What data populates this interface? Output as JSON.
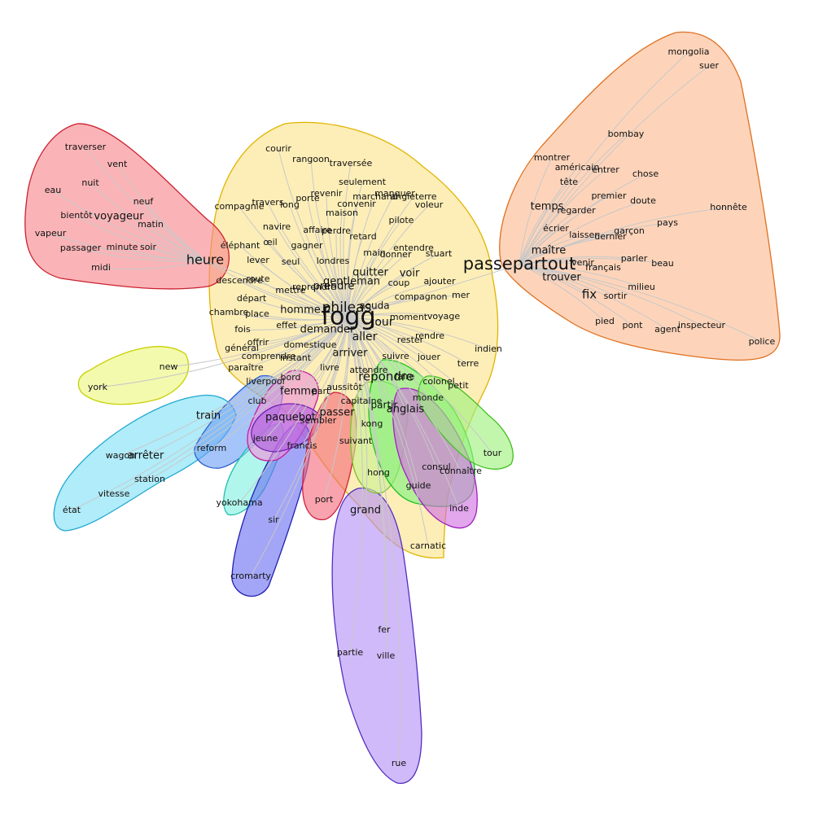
{
  "clusters": [
    {
      "id": "fogg",
      "fill": "#fce38a",
      "stroke": "#e0b400"
    },
    {
      "id": "heure",
      "fill": "#f7868b",
      "stroke": "#cc2030"
    },
    {
      "id": "passepartout",
      "fill": "#fbb990",
      "stroke": "#e07020"
    },
    {
      "id": "york",
      "fill": "#ecf77a",
      "stroke": "#c8d000"
    },
    {
      "id": "train",
      "fill": "#7fe0f5",
      "stroke": "#20a8d0"
    },
    {
      "id": "liverpool",
      "fill": "#6ea0f5",
      "stroke": "#3060d0"
    },
    {
      "id": "yokohama",
      "fill": "#7ff0e0",
      "stroke": "#20c0b0"
    },
    {
      "id": "sir",
      "fill": "#6a70f0",
      "stroke": "#2020b0"
    },
    {
      "id": "femme",
      "fill": "#f090d8",
      "stroke": "#c020a0"
    },
    {
      "id": "paquebot",
      "fill": "#b060e0",
      "stroke": "#7020b0"
    },
    {
      "id": "passer",
      "fill": "#f36a7a",
      "stroke": "#d02040"
    },
    {
      "id": "grand",
      "fill": "#b490f5",
      "stroke": "#5030c0"
    },
    {
      "id": "kong",
      "fill": "#c8f090",
      "stroke": "#80c030"
    },
    {
      "id": "repondre",
      "fill": "#7ff080",
      "stroke": "#20c020"
    },
    {
      "id": "anglais",
      "fill": "#d070e0",
      "stroke": "#a020c0"
    },
    {
      "id": "monde",
      "fill": "#9cf07a",
      "stroke": "#40c020"
    }
  ],
  "words": [
    {
      "text": "fogg",
      "size": 30
    },
    {
      "text": "phileas",
      "size": 17
    },
    {
      "text": "passepartout",
      "size": 21
    },
    {
      "text": "heure",
      "size": 16
    },
    {
      "text": "répondre",
      "size": 15
    },
    {
      "text": "fix",
      "size": 15
    },
    {
      "text": "aller",
      "size": 14
    },
    {
      "text": "gentleman",
      "size": 13
    },
    {
      "text": "jour",
      "size": 14
    },
    {
      "text": "homme",
      "size": 13
    },
    {
      "text": "demander",
      "size": 13
    },
    {
      "text": "arriver",
      "size": 13
    },
    {
      "text": "quitter",
      "size": 13
    },
    {
      "text": "voir",
      "size": 13
    },
    {
      "text": "prendre",
      "size": 13
    },
    {
      "text": "aouda",
      "size": 12
    },
    {
      "text": "maître",
      "size": 13
    },
    {
      "text": "trouver",
      "size": 13
    },
    {
      "text": "temps",
      "size": 13
    },
    {
      "text": "voyageur",
      "size": 13
    },
    {
      "text": "train",
      "size": 13
    },
    {
      "text": "arrêter",
      "size": 13
    },
    {
      "text": "passer",
      "size": 13
    },
    {
      "text": "paquebot",
      "size": 13
    },
    {
      "text": "femme",
      "size": 13
    },
    {
      "text": "anglais",
      "size": 13
    },
    {
      "text": "grand",
      "size": 13
    },
    {
      "text": "partir",
      "size": 12
    },
    {
      "text": "courir",
      "size": 11
    },
    {
      "text": "rangoon",
      "size": 11
    },
    {
      "text": "traversée",
      "size": 11
    },
    {
      "text": "seulement",
      "size": 11
    },
    {
      "text": "manquer",
      "size": 11
    },
    {
      "text": "revenir",
      "size": 11
    },
    {
      "text": "compagnie",
      "size": 11
    },
    {
      "text": "travers",
      "size": 11
    },
    {
      "text": "porte",
      "size": 11
    },
    {
      "text": "convenir",
      "size": 11
    },
    {
      "text": "marchand",
      "size": 11
    },
    {
      "text": "angleterre",
      "size": 11
    },
    {
      "text": "voleur",
      "size": 11
    },
    {
      "text": "long",
      "size": 11
    },
    {
      "text": "maison",
      "size": 11
    },
    {
      "text": "navire",
      "size": 11
    },
    {
      "text": "pilote",
      "size": 11
    },
    {
      "text": "affaire",
      "size": 11
    },
    {
      "text": "perdre",
      "size": 11
    },
    {
      "text": "œil",
      "size": 11
    },
    {
      "text": "éléphant",
      "size": 11
    },
    {
      "text": "gagner",
      "size": 11
    },
    {
      "text": "retard",
      "size": 11
    },
    {
      "text": "entendre",
      "size": 11
    },
    {
      "text": "lever",
      "size": 11
    },
    {
      "text": "seul",
      "size": 11
    },
    {
      "text": "londres",
      "size": 11
    },
    {
      "text": "main",
      "size": 11
    },
    {
      "text": "donner",
      "size": 11
    },
    {
      "text": "stuart",
      "size": 11
    },
    {
      "text": "descendre",
      "size": 11
    },
    {
      "text": "route",
      "size": 11
    },
    {
      "text": "coup",
      "size": 11
    },
    {
      "text": "ajouter",
      "size": 11
    },
    {
      "text": "mettre",
      "size": 11
    },
    {
      "text": "reprendre",
      "size": 11
    },
    {
      "text": "compagnon",
      "size": 11
    },
    {
      "text": "mer",
      "size": 11
    },
    {
      "text": "chambre",
      "size": 11
    },
    {
      "text": "place",
      "size": 11
    },
    {
      "text": "départ",
      "size": 11
    },
    {
      "text": "moment",
      "size": 11
    },
    {
      "text": "voyage",
      "size": 11
    },
    {
      "text": "effet",
      "size": 11
    },
    {
      "text": "fois",
      "size": 11
    },
    {
      "text": "rester",
      "size": 11
    },
    {
      "text": "rendre",
      "size": 11
    },
    {
      "text": "offrir",
      "size": 11
    },
    {
      "text": "général",
      "size": 11
    },
    {
      "text": "domestique",
      "size": 11
    },
    {
      "text": "indien",
      "size": 11
    },
    {
      "text": "comprendre",
      "size": 11
    },
    {
      "text": "instant",
      "size": 11
    },
    {
      "text": "suivre",
      "size": 11
    },
    {
      "text": "jouer",
      "size": 11
    },
    {
      "text": "terre",
      "size": 11
    },
    {
      "text": "paraître",
      "size": 11
    },
    {
      "text": "livre",
      "size": 11
    },
    {
      "text": "attendre",
      "size": 11
    },
    {
      "text": "faire",
      "size": 11
    },
    {
      "text": "colonel",
      "size": 11
    },
    {
      "text": "bord",
      "size": 11
    },
    {
      "text": "petit",
      "size": 11
    },
    {
      "text": "liverpool",
      "size": 11
    },
    {
      "text": "aussitôt",
      "size": 11
    },
    {
      "text": "part",
      "size": 11
    },
    {
      "text": "monde",
      "size": 11
    },
    {
      "text": "club",
      "size": 11
    },
    {
      "text": "capitaine",
      "size": 11
    },
    {
      "text": "sembler",
      "size": 11
    },
    {
      "text": "kong",
      "size": 11
    },
    {
      "text": "jeune",
      "size": 11
    },
    {
      "text": "francis",
      "size": 11
    },
    {
      "text": "suivant",
      "size": 11
    },
    {
      "text": "tour",
      "size": 11
    },
    {
      "text": "reform",
      "size": 11
    },
    {
      "text": "consul",
      "size": 11
    },
    {
      "text": "connaître",
      "size": 11
    },
    {
      "text": "hong",
      "size": 11
    },
    {
      "text": "wagon",
      "size": 11
    },
    {
      "text": "station",
      "size": 11
    },
    {
      "text": "guide",
      "size": 11
    },
    {
      "text": "vitesse",
      "size": 11
    },
    {
      "text": "yokohama",
      "size": 11
    },
    {
      "text": "port",
      "size": 11
    },
    {
      "text": "inde",
      "size": 11
    },
    {
      "text": "état",
      "size": 11
    },
    {
      "text": "sir",
      "size": 11
    },
    {
      "text": "carnatic",
      "size": 11
    },
    {
      "text": "cromarty",
      "size": 11
    },
    {
      "text": "fer",
      "size": 11
    },
    {
      "text": "partie",
      "size": 11
    },
    {
      "text": "ville",
      "size": 11
    },
    {
      "text": "rue",
      "size": 11
    },
    {
      "text": "new",
      "size": 11
    },
    {
      "text": "york",
      "size": 11
    },
    {
      "text": "traverser",
      "size": 11
    },
    {
      "text": "vent",
      "size": 11
    },
    {
      "text": "nuit",
      "size": 11
    },
    {
      "text": "eau",
      "size": 11
    },
    {
      "text": "neuf",
      "size": 11
    },
    {
      "text": "bientôt",
      "size": 11
    },
    {
      "text": "matin",
      "size": 11
    },
    {
      "text": "vapeur",
      "size": 11
    },
    {
      "text": "passager",
      "size": 11
    },
    {
      "text": "minute",
      "size": 11
    },
    {
      "text": "soir",
      "size": 11
    },
    {
      "text": "midi",
      "size": 11
    },
    {
      "text": "mongolia",
      "size": 11
    },
    {
      "text": "suer",
      "size": 11
    },
    {
      "text": "bombay",
      "size": 11
    },
    {
      "text": "montrer",
      "size": 11
    },
    {
      "text": "américain",
      "size": 11
    },
    {
      "text": "entrer",
      "size": 11
    },
    {
      "text": "chose",
      "size": 11
    },
    {
      "text": "tête",
      "size": 11
    },
    {
      "text": "premier",
      "size": 11
    },
    {
      "text": "doute",
      "size": 11
    },
    {
      "text": "regarder",
      "size": 11
    },
    {
      "text": "honnête",
      "size": 11
    },
    {
      "text": "pays",
      "size": 11
    },
    {
      "text": "écrier",
      "size": 11
    },
    {
      "text": "laisser",
      "size": 11
    },
    {
      "text": "dernier",
      "size": 11
    },
    {
      "text": "garçon",
      "size": 11
    },
    {
      "text": "parler",
      "size": 11
    },
    {
      "text": "venir",
      "size": 11
    },
    {
      "text": "beau",
      "size": 11
    },
    {
      "text": "français",
      "size": 11
    },
    {
      "text": "milieu",
      "size": 11
    },
    {
      "text": "sortir",
      "size": 11
    },
    {
      "text": "pied",
      "size": 11
    },
    {
      "text": "pont",
      "size": 11
    },
    {
      "text": "agent",
      "size": 11
    },
    {
      "text": "inspecteur",
      "size": 11
    },
    {
      "text": "police",
      "size": 11
    }
  ]
}
